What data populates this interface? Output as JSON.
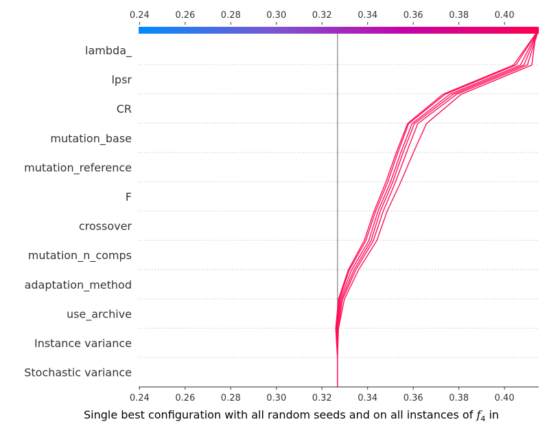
{
  "chart_data": {
    "type": "line",
    "chart_kind": "decision plot",
    "xlabel_main": "Single best configuration with all random seeds and on all instances of ",
    "xlabel_math": "f",
    "xlabel_sub": "4",
    "xlabel_tail": " in",
    "xlim": [
      0.2396,
      0.415
    ],
    "x_ticks": [
      "0.24",
      "0.26",
      "0.28",
      "0.30",
      "0.32",
      "0.34",
      "0.36",
      "0.38",
      "0.40"
    ],
    "x_tick_values": [
      0.24,
      0.26,
      0.28,
      0.3,
      0.32,
      0.34,
      0.36,
      0.38,
      0.4
    ],
    "base_value": 0.3268,
    "features": [
      "lambda_",
      "lpsr",
      "CR",
      "mutation_base",
      "mutation_reference",
      "F",
      "crossover",
      "mutation_n_comps",
      "adaptation_method",
      "use_archive",
      "Instance variance",
      "Stochastic variance"
    ],
    "grid": "dotted horizontal lines between features",
    "colorbar": {
      "position": "top",
      "gradient": [
        "#008bfb",
        "#7a56d3",
        "#c403a6",
        "#ff0052"
      ]
    },
    "line_color": "#ff0d57",
    "series": [
      {
        "values": [
          0.3268,
          0.3262,
          0.3275,
          0.332,
          0.3392,
          0.3435,
          0.3488,
          0.3532,
          0.358,
          0.374,
          0.405,
          0.415
        ]
      },
      {
        "values": [
          0.3268,
          0.3264,
          0.328,
          0.333,
          0.3405,
          0.3445,
          0.35,
          0.3545,
          0.3595,
          0.376,
          0.407,
          0.415
        ]
      },
      {
        "values": [
          0.3268,
          0.3266,
          0.3285,
          0.334,
          0.3415,
          0.3455,
          0.351,
          0.3555,
          0.3605,
          0.3775,
          0.4085,
          0.415
        ]
      },
      {
        "values": [
          0.3268,
          0.327,
          0.329,
          0.3348,
          0.3425,
          0.3468,
          0.3522,
          0.357,
          0.362,
          0.379,
          0.41,
          0.415
        ]
      },
      {
        "values": [
          0.3268,
          0.3272,
          0.3298,
          0.336,
          0.344,
          0.3485,
          0.3545,
          0.36,
          0.3658,
          0.381,
          0.412,
          0.414
        ]
      },
      {
        "values": [
          0.3268,
          0.326,
          0.3272,
          0.3315,
          0.3385,
          0.3428,
          0.348,
          0.3525,
          0.3575,
          0.373,
          0.404,
          0.415
        ]
      }
    ]
  }
}
